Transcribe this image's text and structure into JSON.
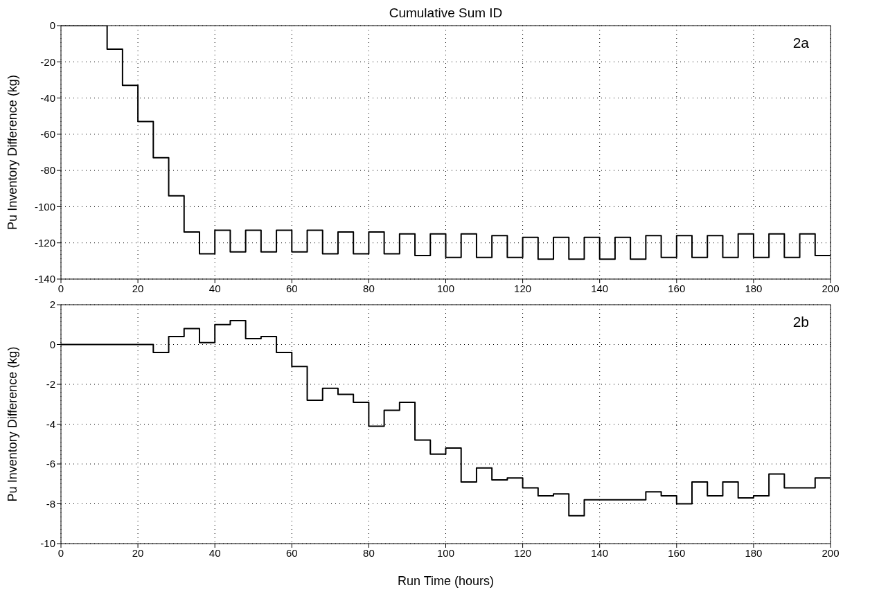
{
  "chart_data": [
    {
      "type": "step",
      "title": "Cumulative Sum ID",
      "ylabel": "Pu Inventory Difference (kg)",
      "annotations": [
        "2a"
      ],
      "x": [
        0,
        12,
        16,
        20,
        24,
        28,
        32,
        36,
        40,
        44,
        48,
        52,
        56,
        60,
        64,
        68,
        72,
        76,
        80,
        84,
        88,
        92,
        96,
        100,
        104,
        108,
        112,
        116,
        120,
        124,
        128,
        132,
        136,
        140,
        144,
        148,
        152,
        156,
        160,
        164,
        168,
        172,
        176,
        180,
        184,
        188,
        192,
        196,
        200
      ],
      "series": [
        {
          "color": "#000000",
          "values": [
            0,
            -13,
            -33,
            -53,
            -73,
            -94,
            -114,
            -126,
            -113,
            -125,
            -113,
            -125,
            -113,
            -125,
            -113,
            -126,
            -114,
            -126,
            -114,
            -126,
            -115,
            -127,
            -115,
            -128,
            -115,
            -128,
            -116,
            -128,
            -117,
            -129,
            -117,
            -129,
            -117,
            -129,
            -117,
            -129,
            -116,
            -128,
            -116,
            -128,
            -116,
            -128,
            -115,
            -128,
            -115,
            -128,
            -115,
            -127,
            -127
          ]
        }
      ],
      "xlim": [
        0,
        200
      ],
      "xticks": [
        0,
        20,
        40,
        60,
        80,
        100,
        120,
        140,
        160,
        180,
        200
      ],
      "ylim": [
        -140,
        0
      ],
      "yticks": [
        -140,
        -120,
        -100,
        -80,
        -60,
        -40,
        -20,
        0
      ],
      "grid": true
    },
    {
      "type": "step",
      "xlabel": "Run Time (hours)",
      "ylabel": "Pu Inventory Difference (kg)",
      "annotations": [
        "2b"
      ],
      "x": [
        0,
        24,
        28,
        32,
        36,
        40,
        44,
        48,
        52,
        56,
        60,
        64,
        68,
        72,
        76,
        80,
        84,
        88,
        92,
        96,
        100,
        104,
        108,
        112,
        116,
        120,
        124,
        128,
        132,
        136,
        140,
        144,
        148,
        152,
        156,
        160,
        164,
        168,
        172,
        176,
        180,
        184,
        188,
        192,
        196,
        200
      ],
      "series": [
        {
          "color": "#000000",
          "values": [
            0,
            -0.4,
            0.4,
            0.8,
            0.1,
            1.0,
            1.2,
            0.3,
            0.4,
            -0.4,
            -1.1,
            -2.8,
            -2.2,
            -2.5,
            -2.9,
            -4.1,
            -3.3,
            -2.9,
            -4.8,
            -5.5,
            -5.2,
            -6.9,
            -6.2,
            -6.8,
            -6.7,
            -7.2,
            -7.6,
            -7.5,
            -8.6,
            -7.8,
            -7.8,
            -7.8,
            -7.8,
            -7.4,
            -7.6,
            -8.0,
            -6.9,
            -7.6,
            -6.9,
            -7.7,
            -7.6,
            -6.5,
            -7.2,
            -7.2,
            -6.7,
            -6.7
          ]
        }
      ],
      "xlim": [
        0,
        200
      ],
      "xticks": [
        0,
        20,
        40,
        60,
        80,
        100,
        120,
        140,
        160,
        180,
        200
      ],
      "ylim": [
        -10,
        2
      ],
      "yticks": [
        -10,
        -8,
        -6,
        -4,
        -2,
        0,
        2
      ],
      "grid": true
    }
  ]
}
